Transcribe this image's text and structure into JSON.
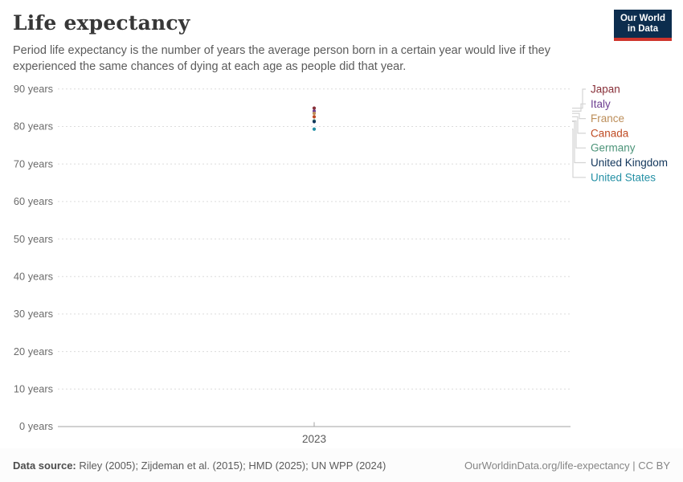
{
  "header": {
    "title": "Life expectancy",
    "subtitle": "Period life expectancy is the number of years the average person born in a certain year would live if they experienced the same chances of dying at each age as people did that year.",
    "logo": {
      "line1": "Our World",
      "line2": "in Data",
      "bg_color": "#0c2d4e",
      "stripe_color": "#cf342c"
    }
  },
  "chart_data": {
    "type": "scatter",
    "title": "Life expectancy",
    "x": [
      2023
    ],
    "x_tick_label": "2023",
    "series": [
      {
        "name": "Japan",
        "color": "#883039",
        "values": [
          84.9
        ]
      },
      {
        "name": "Italy",
        "color": "#6D3E91",
        "values": [
          84.1
        ]
      },
      {
        "name": "France",
        "color": "#BC8E5A",
        "values": [
          83.5
        ]
      },
      {
        "name": "Canada",
        "color": "#BF4B23",
        "values": [
          82.6
        ]
      },
      {
        "name": "Germany",
        "color": "#4C9479",
        "values": [
          81.5
        ]
      },
      {
        "name": "United Kingdom",
        "color": "#12365B",
        "values": [
          81.3
        ]
      },
      {
        "name": "United States",
        "color": "#2490A5",
        "values": [
          79.3
        ]
      }
    ],
    "ylim": [
      0,
      90
    ],
    "ytick_step": 10,
    "ytick_suffix": " years",
    "grid": "horizontal-dashed",
    "legend_position": "right"
  },
  "footer": {
    "source_label": "Data source:",
    "source_text": " Riley (2005); Zijdeman et al. (2015); HMD (2025); UN WPP (2024)",
    "rights": "OurWorldinData.org/life-expectancy | CC BY"
  }
}
